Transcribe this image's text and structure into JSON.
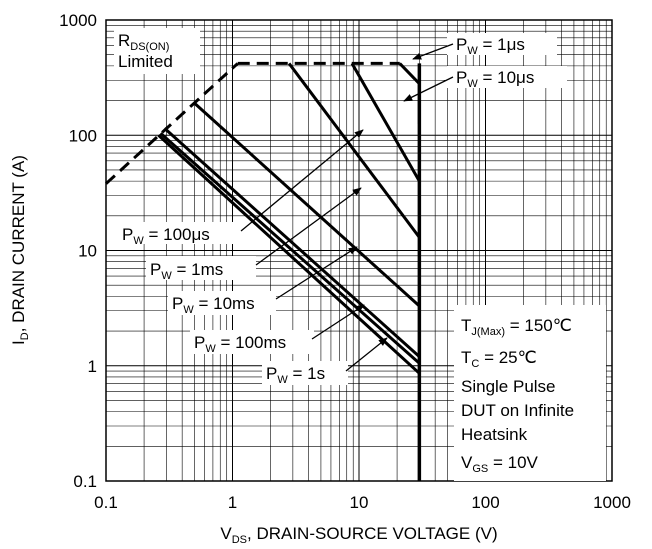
{
  "chart_data": {
    "type": "line",
    "x_scale": "log",
    "y_scale": "log",
    "xlim": [
      0.1,
      1000
    ],
    "ylim": [
      0.1,
      1000
    ],
    "grid": true,
    "x_ticks": [
      "0.1",
      "1",
      "10",
      "100",
      "1000"
    ],
    "y_ticks": [
      "0.1",
      "1",
      "10",
      "100",
      "1000"
    ],
    "xlabel": {
      "main": "V",
      "sub": "DS",
      "rest": ", DRAIN-SOURCE VOLTAGE (V)"
    },
    "ylabel": {
      "main": "I",
      "sub": "D",
      "rest": ", DRAIN CURRENT (A)"
    },
    "rds_limit": {
      "label_main": "R",
      "label_sub": "DS(ON)",
      "label_line2": "Limited",
      "points": [
        [
          0.1,
          38
        ],
        [
          1.1,
          420
        ]
      ]
    },
    "current_limit": {
      "points": [
        [
          1.1,
          420
        ],
        [
          21,
          420
        ]
      ]
    },
    "series": [
      {
        "label": "1μs",
        "points": [
          [
            21,
            420
          ],
          [
            30,
            280
          ],
          [
            30,
            125
          ]
        ]
      },
      {
        "label": "10μs",
        "points": [
          [
            8.8,
            420
          ],
          [
            30,
            40
          ]
        ]
      },
      {
        "label": "100μs",
        "points": [
          [
            2.8,
            420
          ],
          [
            30,
            13
          ]
        ]
      },
      {
        "label": "1ms",
        "points": [
          [
            0.5,
            190
          ],
          [
            30,
            3.3
          ]
        ]
      },
      {
        "label": "10ms",
        "points": [
          [
            0.29,
            115
          ],
          [
            30,
            1.2
          ]
        ]
      },
      {
        "label": "100ms",
        "points": [
          [
            0.27,
            104
          ],
          [
            30,
            1.05
          ]
        ]
      },
      {
        "label": "1s",
        "points": [
          [
            0.26,
            100
          ],
          [
            30,
            0.86
          ]
        ]
      }
    ],
    "breakdown_voltage": {
      "x": 30,
      "y_range": [
        0.1,
        420
      ]
    },
    "legend_labels": [
      {
        "main": "P",
        "sub": "W",
        "rest": " = 1μs"
      },
      {
        "main": "P",
        "sub": "W",
        "rest": " = 10μs"
      },
      {
        "main": "P",
        "sub": "W",
        "rest": " = 100μs"
      },
      {
        "main": "P",
        "sub": "W",
        "rest": " = 1ms"
      },
      {
        "main": "P",
        "sub": "W",
        "rest": " = 10ms"
      },
      {
        "main": "P",
        "sub": "W",
        "rest": " = 100ms"
      },
      {
        "main": "P",
        "sub": "W",
        "rest": " = 1s"
      }
    ],
    "conditions": [
      {
        "main": "T",
        "sub": "J(Max)",
        "rest": " = 150℃"
      },
      {
        "main": "T",
        "sub": "C",
        "rest": " = 25℃"
      },
      {
        "main": "Single Pulse",
        "sub": "",
        "rest": ""
      },
      {
        "main": "DUT on Infinite",
        "sub": "",
        "rest": ""
      },
      {
        "main": "Heatsink",
        "sub": "",
        "rest": ""
      },
      {
        "main": "V",
        "sub": "GS",
        "rest": " = 10V"
      }
    ]
  }
}
